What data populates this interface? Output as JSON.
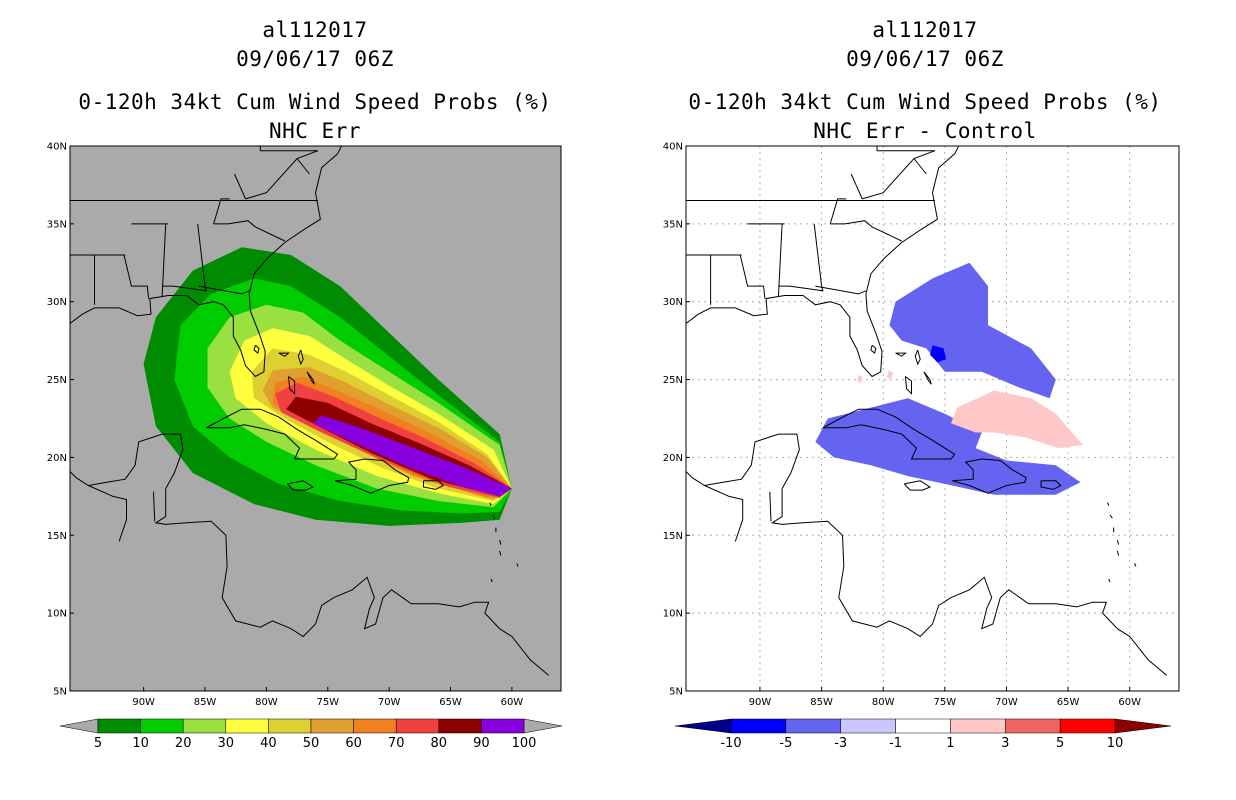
{
  "left": {
    "storm_id": "al112017",
    "datetime": "09/06/17 06Z",
    "title": "0-120h 34kt Cum Wind Speed Probs (%)",
    "subtitle": "NHC Err"
  },
  "right": {
    "storm_id": "al112017",
    "datetime": "09/06/17 06Z",
    "title": "0-120h 34kt Cum Wind Speed Probs (%)",
    "subtitle": "NHC Err - Control"
  },
  "colors": {
    "land_bg": "#aaaaaa",
    "left_bins": [
      "#008c00",
      "#00cc00",
      "#99e040",
      "#ffff40",
      "#ddd030",
      "#e0a030",
      "#f08020",
      "#f04040",
      "#8c0000",
      "#8800dd"
    ],
    "right_bins": [
      "#00008c",
      "#0000ff",
      "#6464f0",
      "#c8c8ff",
      "#ffffff",
      "#ffc8c8",
      "#f06464",
      "#ff0000",
      "#8c0000"
    ]
  },
  "chart_data": [
    {
      "type": "contour-map",
      "title": "0-120h 34kt Cum Wind Speed Probs (%)",
      "subtitle": "NHC Err",
      "xlim": [
        -96,
        -56
      ],
      "ylim": [
        5,
        40
      ],
      "x_ticks": [
        "90W",
        "85W",
        "80W",
        "75W",
        "70W",
        "65W",
        "60W"
      ],
      "y_ticks": [
        "5N",
        "10N",
        "15N",
        "20N",
        "25N",
        "30N",
        "35N",
        "40N"
      ],
      "colorbar_levels": [
        "5",
        "10",
        "20",
        "30",
        "40",
        "50",
        "60",
        "70",
        "80",
        "90",
        "100"
      ],
      "contours": [
        {
          "level": 5,
          "polygon": [
            [
              -60,
              18
            ],
            [
              -61,
              21.5
            ],
            [
              -66,
              25
            ],
            [
              -70,
              28
            ],
            [
              -74,
              31
            ],
            [
              -78,
              33
            ],
            [
              -82,
              33.5
            ],
            [
              -86,
              32
            ],
            [
              -89,
              29
            ],
            [
              -90,
              26
            ],
            [
              -89,
              22
            ],
            [
              -86,
              19
            ],
            [
              -81,
              17
            ],
            [
              -76,
              16
            ],
            [
              -70,
              15.6
            ],
            [
              -64,
              15.8
            ],
            [
              -61,
              16
            ]
          ]
        },
        {
          "level": 10,
          "polygon": [
            [
              -60,
              18
            ],
            [
              -61,
              21
            ],
            [
              -66,
              24
            ],
            [
              -70,
              26.5
            ],
            [
              -74,
              29
            ],
            [
              -78,
              31
            ],
            [
              -81,
              31.5
            ],
            [
              -84.5,
              30.5
            ],
            [
              -87,
              28.5
            ],
            [
              -87.5,
              25
            ],
            [
              -86,
              22
            ],
            [
              -83,
              20
            ],
            [
              -79,
              18.3
            ],
            [
              -74,
              17.2
            ],
            [
              -69,
              16.6
            ],
            [
              -64,
              16.4
            ],
            [
              -61,
              16.5
            ]
          ]
        },
        {
          "level": 20,
          "polygon": [
            [
              -60,
              18
            ],
            [
              -61,
              20.8
            ],
            [
              -66,
              23.5
            ],
            [
              -70,
              25.5
            ],
            [
              -74,
              27.5
            ],
            [
              -77,
              29.3
            ],
            [
              -80,
              29.8
            ],
            [
              -83,
              29
            ],
            [
              -84.8,
              27
            ],
            [
              -84.8,
              24.5
            ],
            [
              -83,
              22.5
            ],
            [
              -80,
              21
            ],
            [
              -76,
              19.5
            ],
            [
              -71,
              18
            ],
            [
              -66,
              17.2
            ],
            [
              -61.5,
              16.8
            ]
          ]
        },
        {
          "level": 30,
          "polygon": [
            [
              -60,
              18
            ],
            [
              -61.5,
              20.5
            ],
            [
              -66,
              22.8
            ],
            [
              -70,
              24.6
            ],
            [
              -73.5,
              26.3
            ],
            [
              -76.5,
              27.8
            ],
            [
              -79.5,
              28.3
            ],
            [
              -81.8,
              27.5
            ],
            [
              -83,
              25.5
            ],
            [
              -82.5,
              23.8
            ],
            [
              -80,
              22.2
            ],
            [
              -76,
              20.5
            ],
            [
              -71,
              18.8
            ],
            [
              -66,
              17.7
            ],
            [
              -61.5,
              17
            ]
          ]
        },
        {
          "level": 40,
          "polygon": [
            [
              -60,
              18
            ],
            [
              -62,
              20.2
            ],
            [
              -66,
              22.3
            ],
            [
              -70,
              24
            ],
            [
              -73.5,
              25.5
            ],
            [
              -76.5,
              26.6
            ],
            [
              -79.5,
              27
            ],
            [
              -81.2,
              25.5
            ],
            [
              -81,
              23.8
            ],
            [
              -78.5,
              22.5
            ],
            [
              -75,
              21
            ],
            [
              -70.5,
              19.3
            ],
            [
              -66,
              18
            ],
            [
              -61.5,
              17.2
            ]
          ]
        },
        {
          "level": 50,
          "polygon": [
            [
              -60,
              18
            ],
            [
              -62,
              20
            ],
            [
              -66,
              21.9
            ],
            [
              -70,
              23.4
            ],
            [
              -73.5,
              24.8
            ],
            [
              -76.5,
              25.8
            ],
            [
              -79.5,
              25.6
            ],
            [
              -80.3,
              24.3
            ],
            [
              -79.5,
              23.2
            ],
            [
              -76.5,
              22
            ],
            [
              -72,
              20.3
            ],
            [
              -67,
              18.5
            ],
            [
              -61.5,
              17.3
            ]
          ]
        },
        {
          "level": 60,
          "polygon": [
            [
              -60,
              18
            ],
            [
              -62.5,
              19.8
            ],
            [
              -66.5,
              21.5
            ],
            [
              -70.5,
              23
            ],
            [
              -74,
              24.2
            ],
            [
              -77,
              25.2
            ],
            [
              -79.3,
              24.8
            ],
            [
              -79.5,
              23.5
            ],
            [
              -77.5,
              22.4
            ],
            [
              -73,
              20.7
            ],
            [
              -68,
              18.8
            ],
            [
              -62,
              17.4
            ]
          ]
        },
        {
          "level": 70,
          "polygon": [
            [
              -60,
              18
            ],
            [
              -63,
              19.6
            ],
            [
              -67,
              21.2
            ],
            [
              -71,
              22.6
            ],
            [
              -74.5,
              23.9
            ],
            [
              -77.5,
              24.8
            ],
            [
              -79.3,
              24.1
            ],
            [
              -78.8,
              22.9
            ],
            [
              -75.5,
              21.6
            ],
            [
              -70.5,
              19.8
            ],
            [
              -65.5,
              18.2
            ],
            [
              -61,
              17.4
            ]
          ]
        },
        {
          "level": 80,
          "polygon": [
            [
              -60,
              18
            ],
            [
              -63.5,
              19.5
            ],
            [
              -67.5,
              20.9
            ],
            [
              -71.5,
              22.2
            ],
            [
              -75,
              23.5
            ],
            [
              -77.6,
              23.9
            ],
            [
              -78.4,
              23.1
            ],
            [
              -76,
              22.1
            ],
            [
              -71.5,
              20.3
            ],
            [
              -66.5,
              18.6
            ],
            [
              -61,
              17.5
            ]
          ]
        },
        {
          "level": 90,
          "polygon": [
            [
              -60,
              18
            ],
            [
              -64,
              19.4
            ],
            [
              -68,
              20.6
            ],
            [
              -72,
              21.8
            ],
            [
              -75.5,
              22.7
            ],
            [
              -76.2,
              22.2
            ],
            [
              -73,
              21
            ],
            [
              -68.5,
              19.4
            ],
            [
              -64,
              18.1
            ],
            [
              -61,
              17.5
            ]
          ]
        }
      ]
    },
    {
      "type": "contour-map",
      "title": "0-120h 34kt Cum Wind Speed Probs (%)",
      "subtitle": "NHC Err - Control",
      "xlim": [
        -96,
        -56
      ],
      "ylim": [
        5,
        40
      ],
      "x_ticks": [
        "90W",
        "85W",
        "80W",
        "75W",
        "70W",
        "65W",
        "60W"
      ],
      "y_ticks": [
        "5N",
        "10N",
        "15N",
        "20N",
        "25N",
        "30N",
        "35N",
        "40N"
      ],
      "colorbar_levels": [
        "-10",
        "-5",
        "-3",
        "-1",
        "1",
        "3",
        "5",
        "10"
      ],
      "contours": [
        {
          "level": -3,
          "polygon": [
            [
              -79,
              30
            ],
            [
              -76,
              31.5
            ],
            [
              -73,
              32.5
            ],
            [
              -71.5,
              31
            ],
            [
              -71.5,
              28.5
            ],
            [
              -68,
              27
            ],
            [
              -66,
              25
            ],
            [
              -66.5,
              23.8
            ],
            [
              -69,
              24.5
            ],
            [
              -72,
              25.5
            ],
            [
              -75,
              25.5
            ],
            [
              -76.5,
              27
            ],
            [
              -78.5,
              27.5
            ],
            [
              -79.5,
              28.5
            ]
          ]
        },
        {
          "level": -3,
          "polygon": [
            [
              -82,
              23
            ],
            [
              -78,
              23.8
            ],
            [
              -75,
              22.8
            ],
            [
              -72,
              21.6
            ],
            [
              -72.5,
              20.6
            ],
            [
              -70,
              19.8
            ],
            [
              -66,
              19.5
            ],
            [
              -64,
              18.4
            ],
            [
              -66,
              17.6
            ],
            [
              -71,
              17.6
            ],
            [
              -75,
              18.3
            ],
            [
              -78,
              18.8
            ],
            [
              -81,
              19.5
            ],
            [
              -84,
              20
            ],
            [
              -85.5,
              21
            ],
            [
              -84.5,
              22.5
            ]
          ]
        },
        {
          "level": -5,
          "polygon": [
            [
              -76,
              27.2
            ],
            [
              -75.1,
              27
            ],
            [
              -74.9,
              26.3
            ],
            [
              -75.6,
              26.1
            ],
            [
              -76.2,
              26.6
            ]
          ]
        },
        {
          "level": 3,
          "polygon": [
            [
              -74,
              23.2
            ],
            [
              -71,
              24.3
            ],
            [
              -68,
              23.8
            ],
            [
              -66,
              22.8
            ],
            [
              -63.8,
              20.8
            ],
            [
              -65.8,
              20.6
            ],
            [
              -68.5,
              21.3
            ],
            [
              -71,
              21.6
            ],
            [
              -72.5,
              21.6
            ],
            [
              -74.5,
              22.2
            ]
          ]
        },
        {
          "level": 3,
          "polygon": [
            [
              -82,
              25.3
            ],
            [
              -81.7,
              25.2
            ],
            [
              -81.8,
              24.8
            ],
            [
              -82.1,
              24.9
            ]
          ]
        },
        {
          "level": 3,
          "polygon": [
            [
              -79.5,
              25.6
            ],
            [
              -79.2,
              25.4
            ],
            [
              -79.4,
              25.0
            ],
            [
              -79.7,
              25.2
            ]
          ]
        }
      ]
    }
  ]
}
